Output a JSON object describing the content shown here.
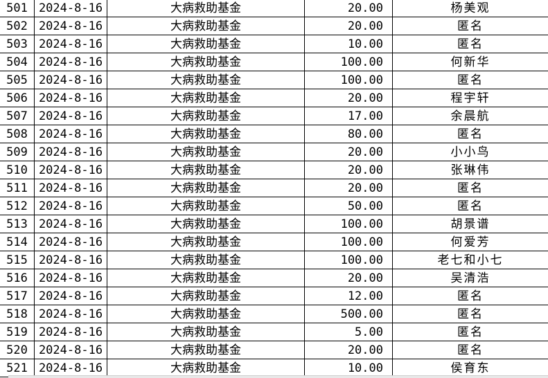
{
  "columns": [
    "index",
    "date",
    "fund",
    "amount",
    "donor"
  ],
  "rows": [
    {
      "index": "501",
      "date": "2024-8-16",
      "fund": "大病救助基金",
      "amount": "20.00",
      "donor": "杨美观"
    },
    {
      "index": "502",
      "date": "2024-8-16",
      "fund": "大病救助基金",
      "amount": "20.00",
      "donor": "匿名"
    },
    {
      "index": "503",
      "date": "2024-8-16",
      "fund": "大病救助基金",
      "amount": "10.00",
      "donor": "匿名"
    },
    {
      "index": "504",
      "date": "2024-8-16",
      "fund": "大病救助基金",
      "amount": "100.00",
      "donor": "何新华"
    },
    {
      "index": "505",
      "date": "2024-8-16",
      "fund": "大病救助基金",
      "amount": "100.00",
      "donor": "匿名"
    },
    {
      "index": "506",
      "date": "2024-8-16",
      "fund": "大病救助基金",
      "amount": "20.00",
      "donor": "程宇轩"
    },
    {
      "index": "507",
      "date": "2024-8-16",
      "fund": "大病救助基金",
      "amount": "17.00",
      "donor": "余晨航"
    },
    {
      "index": "508",
      "date": "2024-8-16",
      "fund": "大病救助基金",
      "amount": "80.00",
      "donor": "匿名"
    },
    {
      "index": "509",
      "date": "2024-8-16",
      "fund": "大病救助基金",
      "amount": "20.00",
      "donor": "小小鸟"
    },
    {
      "index": "510",
      "date": "2024-8-16",
      "fund": "大病救助基金",
      "amount": "20.00",
      "donor": "张琳伟"
    },
    {
      "index": "511",
      "date": "2024-8-16",
      "fund": "大病救助基金",
      "amount": "20.00",
      "donor": "匿名"
    },
    {
      "index": "512",
      "date": "2024-8-16",
      "fund": "大病救助基金",
      "amount": "50.00",
      "donor": "匿名"
    },
    {
      "index": "513",
      "date": "2024-8-16",
      "fund": "大病救助基金",
      "amount": "100.00",
      "donor": "胡景谱"
    },
    {
      "index": "514",
      "date": "2024-8-16",
      "fund": "大病救助基金",
      "amount": "100.00",
      "donor": "何爱芳"
    },
    {
      "index": "515",
      "date": "2024-8-16",
      "fund": "大病救助基金",
      "amount": "100.00",
      "donor": "老七和小七"
    },
    {
      "index": "516",
      "date": "2024-8-16",
      "fund": "大病救助基金",
      "amount": "20.00",
      "donor": "吴清浩"
    },
    {
      "index": "517",
      "date": "2024-8-16",
      "fund": "大病救助基金",
      "amount": "12.00",
      "donor": "匿名"
    },
    {
      "index": "518",
      "date": "2024-8-16",
      "fund": "大病救助基金",
      "amount": "500.00",
      "donor": "匿名"
    },
    {
      "index": "519",
      "date": "2024-8-16",
      "fund": "大病救助基金",
      "amount": "5.00",
      "donor": "匿名"
    },
    {
      "index": "520",
      "date": "2024-8-16",
      "fund": "大病救助基金",
      "amount": "20.00",
      "donor": "匿名"
    },
    {
      "index": "521",
      "date": "2024-8-16",
      "fund": "大病救助基金",
      "amount": "10.00",
      "donor": "侯育东"
    }
  ]
}
